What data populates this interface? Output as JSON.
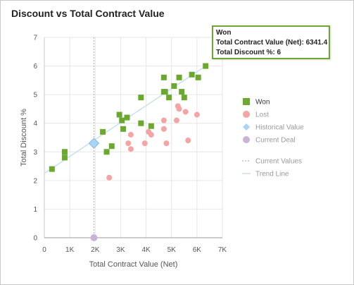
{
  "title": "Discount vs Total Contract Value",
  "tooltip": {
    "title": "Won",
    "line1": "Total Contract Value (Net): 6341.4",
    "line2": "Total Discount %: 6"
  },
  "colors": {
    "won": "#6aa82e",
    "lost": "#f5a3a3",
    "historical": "#a8d4f5",
    "current_deal": "#c9b3d9",
    "trend": "#c8e0f2",
    "current_values": "#b8b8b8"
  },
  "legend": {
    "position": "right",
    "items": [
      {
        "label": "Won",
        "marker": "square",
        "color": "#6aa82e",
        "text_color": "#333333"
      },
      {
        "label": "Lost",
        "marker": "circle",
        "color": "#f5a3a3",
        "text_color": "#9a9a9a"
      },
      {
        "label": "Historical Value",
        "marker": "diamond",
        "color": "#a8d4f5",
        "text_color": "#9a9a9a"
      },
      {
        "label": "Current Deal",
        "marker": "circle",
        "color": "#c9b3d9",
        "text_color": "#9a9a9a"
      },
      {
        "label": "Current Values",
        "marker": "dotted-line",
        "color": "#b8b8b8",
        "text_color": "#9a9a9a"
      },
      {
        "label": "Trend Line",
        "marker": "line",
        "color": "#c8e0f2",
        "text_color": "#9a9a9a"
      }
    ]
  },
  "chart_data": {
    "type": "scatter",
    "title": "Discount vs Total Contract Value",
    "xlabel": "Total Contract Value (Net)",
    "ylabel": "Total Discount %",
    "xlim": [
      0,
      7000
    ],
    "ylim": [
      0,
      7
    ],
    "x_ticks": [
      {
        "value": 0,
        "label": "0"
      },
      {
        "value": 1000,
        "label": "1K"
      },
      {
        "value": 2000,
        "label": "2K"
      },
      {
        "value": 3000,
        "label": "3K"
      },
      {
        "value": 4000,
        "label": "4K"
      },
      {
        "value": 5000,
        "label": "5K"
      },
      {
        "value": 6000,
        "label": "6K"
      },
      {
        "value": 7000,
        "label": "7K"
      }
    ],
    "y_ticks": [
      {
        "value": 0,
        "label": "0"
      },
      {
        "value": 1,
        "label": "1"
      },
      {
        "value": 2,
        "label": "2"
      },
      {
        "value": 3,
        "label": "3"
      },
      {
        "value": 4,
        "label": "4"
      },
      {
        "value": 5,
        "label": "5"
      },
      {
        "value": 6,
        "label": "6"
      },
      {
        "value": 7,
        "label": "7"
      }
    ],
    "grid": true,
    "series": [
      {
        "name": "Won",
        "marker": "square",
        "points": [
          [
            300,
            2.4
          ],
          [
            800,
            3.0
          ],
          [
            800,
            2.8
          ],
          [
            2300,
            3.7
          ],
          [
            2450,
            3.0
          ],
          [
            2650,
            3.2
          ],
          [
            2950,
            4.3
          ],
          [
            3050,
            4.1
          ],
          [
            3100,
            3.8
          ],
          [
            3250,
            4.2
          ],
          [
            3800,
            4.9
          ],
          [
            3800,
            4.0
          ],
          [
            4200,
            3.9
          ],
          [
            4700,
            5.6
          ],
          [
            4700,
            5.1
          ],
          [
            4750,
            5.1
          ],
          [
            4900,
            4.9
          ],
          [
            5100,
            5.3
          ],
          [
            5300,
            5.6
          ],
          [
            5400,
            5.1
          ],
          [
            5500,
            4.9
          ],
          [
            5800,
            5.7
          ],
          [
            6050,
            5.6
          ],
          [
            6341.4,
            6.0
          ]
        ]
      },
      {
        "name": "Lost",
        "marker": "circle",
        "points": [
          [
            2550,
            2.1
          ],
          [
            3300,
            3.3
          ],
          [
            3400,
            3.1
          ],
          [
            3400,
            3.6
          ],
          [
            3950,
            3.3
          ],
          [
            4100,
            3.7
          ],
          [
            4200,
            3.6
          ],
          [
            4700,
            4.1
          ],
          [
            4700,
            3.8
          ],
          [
            4800,
            3.3
          ],
          [
            5200,
            4.1
          ],
          [
            5250,
            4.6
          ],
          [
            5300,
            4.5
          ],
          [
            5550,
            4.4
          ],
          [
            5650,
            3.4
          ],
          [
            6000,
            4.3
          ]
        ]
      },
      {
        "name": "Historical Value",
        "marker": "diamond",
        "points": [
          [
            1950,
            3.3
          ]
        ]
      },
      {
        "name": "Current Deal",
        "marker": "circle",
        "points": [
          [
            1950,
            0
          ]
        ]
      }
    ],
    "current_values": {
      "x": 1950
    },
    "trend_line": {
      "from": [
        0,
        2.25
      ],
      "to": [
        6341.4,
        6.0
      ]
    }
  }
}
